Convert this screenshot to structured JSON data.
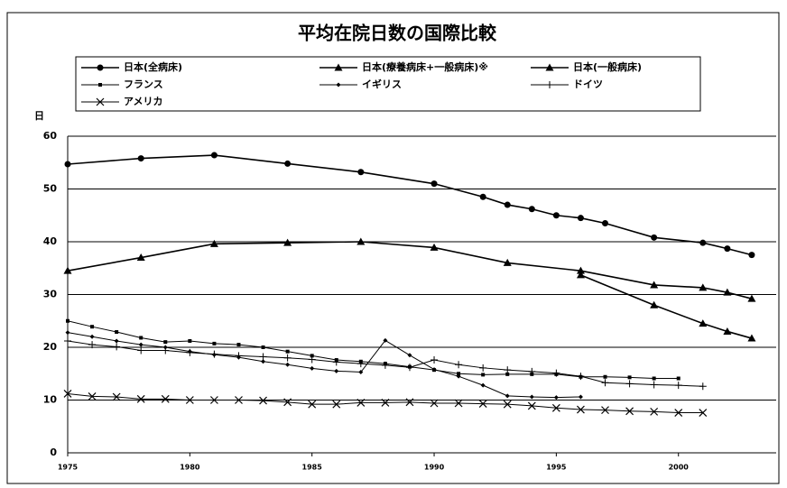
{
  "chart_data": {
    "type": "line",
    "title": "平均在院日数の国際比較",
    "y_label": "日",
    "xlim": [
      1975,
      2004
    ],
    "xticks": [
      1975,
      1980,
      1985,
      1990,
      1995,
      2000
    ],
    "ylim": [
      0,
      60
    ],
    "yticks": [
      0,
      10,
      20,
      30,
      40,
      50,
      60
    ],
    "grid": true,
    "legend": "top",
    "series": [
      {
        "name": "日本(全病床)",
        "color": "#000000",
        "marker": "circle",
        "x": [
          1975,
          1978,
          1981,
          1984,
          1987,
          1990,
          1992,
          1993,
          1994,
          1995,
          1996,
          1997,
          1999,
          2001,
          2002,
          2003
        ],
        "values": [
          54.7,
          55.8,
          56.4,
          54.8,
          53.2,
          51.0,
          48.5,
          47.0,
          46.2,
          45.0,
          44.5,
          43.5,
          40.8,
          39.8,
          38.7,
          37.5
        ]
      },
      {
        "name": "日本(療養病床+一般病床)※",
        "color": "#000000",
        "marker": "triangle",
        "x": [
          1975,
          1978,
          1981,
          1984,
          1987,
          1990,
          1993,
          1996,
          1999,
          2001,
          2002,
          2003
        ],
        "values": [
          34.5,
          37.0,
          39.6,
          39.8,
          40.0,
          38.9,
          36.0,
          34.5,
          31.8,
          31.3,
          30.4,
          29.2
        ]
      },
      {
        "name": "日本(一般病床)",
        "color": "#000000",
        "marker": "triangle",
        "x": [
          1996,
          1999,
          2001,
          2002,
          2003
        ],
        "values": [
          33.7,
          28.0,
          24.5,
          23.0,
          21.7
        ]
      },
      {
        "name": "フランス",
        "color": "#000000",
        "marker": "square",
        "x": [
          1975,
          1976,
          1977,
          1978,
          1979,
          1980,
          1981,
          1982,
          1983,
          1984,
          1985,
          1986,
          1987,
          1988,
          1989,
          1990,
          1991,
          1992,
          1993,
          1994,
          1995,
          1996,
          1997,
          1998,
          1999,
          2000
        ],
        "values": [
          25.0,
          23.9,
          22.9,
          21.8,
          21.0,
          21.2,
          20.7,
          20.5,
          20.0,
          19.2,
          18.4,
          17.6,
          17.3,
          16.9,
          16.3,
          15.7,
          15.0,
          14.8,
          14.9,
          14.9,
          14.9,
          14.4,
          14.4,
          14.3,
          14.1,
          14.1
        ]
      },
      {
        "name": "イギリス",
        "color": "#000000",
        "marker": "diamond",
        "x": [
          1975,
          1976,
          1977,
          1978,
          1979,
          1980,
          1981,
          1982,
          1983,
          1984,
          1985,
          1986,
          1987,
          1988,
          1989,
          1990,
          1991,
          1992,
          1993,
          1994,
          1995,
          1996
        ],
        "values": [
          22.8,
          22.0,
          21.2,
          20.5,
          20.0,
          19.2,
          18.6,
          18.1,
          17.3,
          16.7,
          16.0,
          15.5,
          15.3,
          21.3,
          18.5,
          15.8,
          14.5,
          12.8,
          10.8,
          10.6,
          10.5,
          10.6
        ]
      },
      {
        "name": "ドイツ",
        "color": "#000000",
        "marker": "plus",
        "x": [
          1975,
          1976,
          1977,
          1978,
          1979,
          1980,
          1981,
          1982,
          1983,
          1984,
          1985,
          1986,
          1987,
          1988,
          1989,
          1990,
          1991,
          1992,
          1993,
          1994,
          1995,
          1996,
          1997,
          1998,
          1999,
          2000,
          2001
        ],
        "values": [
          21.2,
          20.5,
          20.1,
          19.4,
          19.4,
          19.0,
          18.7,
          18.4,
          18.2,
          18.0,
          17.7,
          17.2,
          16.9,
          16.6,
          16.2,
          17.6,
          16.7,
          16.1,
          15.7,
          15.4,
          15.1,
          14.5,
          13.3,
          13.1,
          12.9,
          12.8,
          12.6
        ]
      },
      {
        "name": "アメリカ",
        "color": "#000000",
        "marker": "cross",
        "x": [
          1975,
          1976,
          1977,
          1978,
          1979,
          1980,
          1981,
          1982,
          1983,
          1984,
          1985,
          1986,
          1987,
          1988,
          1989,
          1990,
          1991,
          1992,
          1993,
          1994,
          1995,
          1996,
          1997,
          1998,
          1999,
          2000,
          2001
        ],
        "values": [
          11.2,
          10.7,
          10.6,
          10.2,
          10.2,
          10.0,
          10.0,
          10.0,
          9.9,
          9.6,
          9.2,
          9.2,
          9.5,
          9.5,
          9.6,
          9.4,
          9.4,
          9.3,
          9.2,
          8.9,
          8.5,
          8.2,
          8.1,
          7.9,
          7.8,
          7.6,
          7.6
        ]
      }
    ]
  }
}
